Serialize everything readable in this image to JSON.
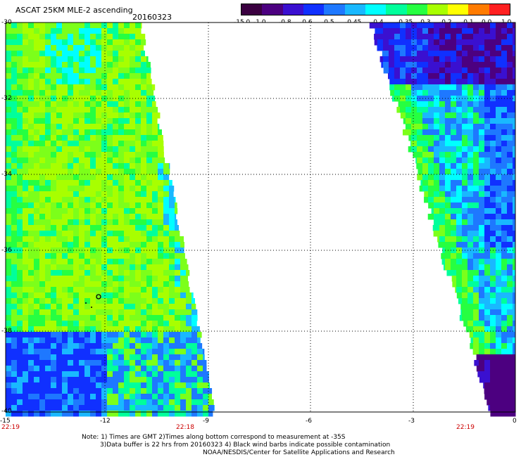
{
  "header": {
    "title": "ASCAT 25KM MLE-2 ascending",
    "date": "20160323"
  },
  "colorbar": {
    "labels": [
      "-15.0",
      "-1.0",
      "-0.8",
      "-0.6",
      "-0.5",
      "-0.45",
      "-0.4",
      "-0.35",
      "-0.3",
      "-0.2",
      "-0.1",
      "0.0",
      "1.0"
    ],
    "colors": [
      "#3a0040",
      "#4c0080",
      "#3a10d0",
      "#1030ff",
      "#1e78ff",
      "#19b8ff",
      "#00ffff",
      "#00ff9b",
      "#26ff41",
      "#a8ff00",
      "#ffff00",
      "#ff7b00",
      "#ff2020"
    ]
  },
  "axes": {
    "y_labels": [
      "-30",
      "-32",
      "-34",
      "-36",
      "-38",
      "-40"
    ],
    "x_labels": [
      "-15",
      "-12",
      "-9",
      "-6",
      "-3",
      "0"
    ],
    "x_range": [
      -15,
      0
    ],
    "y_range": [
      -40,
      -30
    ],
    "grid": "dotted"
  },
  "times": [
    "22:19",
    "22:18",
    "22:19"
  ],
  "notes": {
    "line1": "Note: 1) Times are GMT 2)Times along bottom correspond to measurement at -35S",
    "line2": "3)Data buffer is 22 hrs from 20160323 4) Black wind barbs indicate possible contamination",
    "line3": "NOAA/NESDIS/Center for Satellite Applications and Research"
  },
  "swaths": [
    {
      "name": "west swath",
      "dominant_color": "#a8ff00",
      "lon_range": [
        -15,
        -9
      ],
      "lat_range": [
        -40,
        -30
      ]
    },
    {
      "name": "east swath",
      "dominant_color": "#1030ff",
      "lon_range": [
        -4.3,
        0
      ],
      "lat_range": [
        -40,
        -30
      ]
    }
  ]
}
